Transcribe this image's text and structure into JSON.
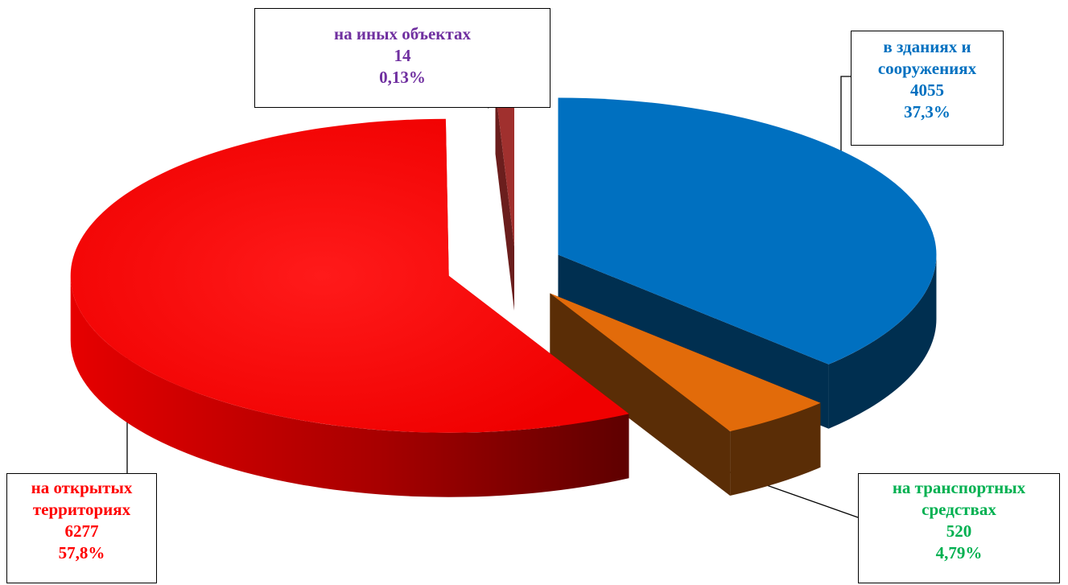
{
  "chart_data": {
    "type": "pie",
    "style": "3d-exploded",
    "slices": [
      {
        "key": "buildings",
        "name_lines": [
          "в зданиях и",
          "сооружениях"
        ],
        "value": 4055,
        "percent": "37,3%",
        "percent_value": 37.3,
        "color": "#0070C0",
        "side_color": "#002F50",
        "label_color": "#0070C0"
      },
      {
        "key": "transport",
        "name_lines": [
          "на транспортных",
          "средствах"
        ],
        "value": 520,
        "percent": "4,79%",
        "percent_value": 4.79,
        "color": "#E26B0A",
        "side_color": "#5A2D06",
        "label_color": "#00B050"
      },
      {
        "key": "open",
        "name_lines": [
          "на открытых",
          "территориях"
        ],
        "value": 6277,
        "percent": "57,8%",
        "percent_value": 57.8,
        "color": "#FF0000",
        "side_color": "#B00000",
        "label_color": "#FF0000"
      },
      {
        "key": "other",
        "name_lines": [
          "на иных объектах"
        ],
        "value": 14,
        "percent": "0,13%",
        "percent_value": 0.13,
        "color": "#A0302E",
        "side_color": "#6B1E1D",
        "label_color": "#7030A0"
      }
    ]
  }
}
